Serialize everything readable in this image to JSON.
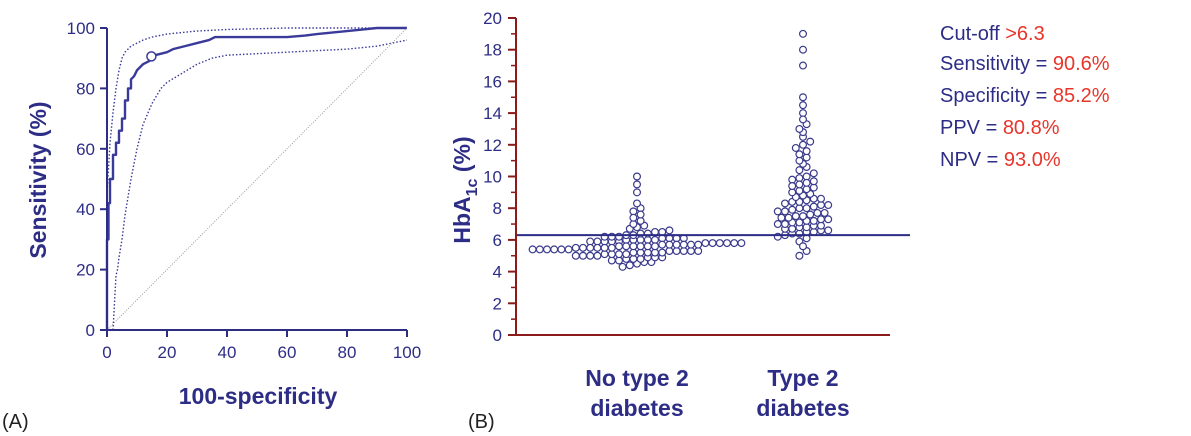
{
  "colors": {
    "axis": "#2d2d86",
    "accent": "#e8352a",
    "marker": "#3a3a8c",
    "diagonal": "#999999"
  },
  "chart_data": [
    {
      "panel_label": "(A)",
      "type": "line",
      "xlabel": "100-specificity",
      "ylabel": "Sensitivity (%)",
      "xlim": [
        0,
        100
      ],
      "ylim": [
        0,
        100
      ],
      "xticks": [
        "0",
        "20",
        "40",
        "60",
        "80",
        "100"
      ],
      "yticks": [
        "0",
        "20",
        "40",
        "60",
        "80",
        "100"
      ],
      "series": [
        {
          "name": "ROC",
          "style": "solid",
          "x": [
            0,
            0,
            0.5,
            0.5,
            1,
            1,
            2,
            2,
            3,
            3,
            4,
            4,
            5,
            5,
            6,
            6,
            7,
            7,
            8,
            8,
            9,
            10,
            12,
            14,
            14.8,
            16,
            18,
            20,
            22,
            26,
            30,
            34,
            36,
            60,
            66,
            70,
            75,
            80,
            85,
            90,
            95,
            100
          ],
          "y": [
            0,
            30,
            30,
            42,
            42,
            50,
            50,
            58,
            58,
            62,
            62,
            66,
            66,
            70,
            70,
            76,
            76,
            80,
            80,
            83,
            84,
            86,
            88,
            89,
            90.6,
            91,
            91.5,
            92,
            93,
            94,
            95,
            96,
            97,
            97,
            97.5,
            98,
            98.5,
            99,
            99.5,
            100,
            100,
            100
          ]
        },
        {
          "name": "Upper 95% CI",
          "style": "dotted",
          "x": [
            0,
            1,
            2,
            3,
            4,
            5,
            6,
            8,
            10,
            12,
            15,
            20,
            30,
            40,
            60,
            80,
            90,
            95,
            100
          ],
          "y": [
            45,
            62,
            72,
            80,
            86,
            90,
            92,
            94,
            95,
            96,
            97,
            98,
            99,
            99.5,
            100,
            100,
            100,
            100,
            100
          ]
        },
        {
          "name": "Lower 95% CI",
          "style": "dotted",
          "x": [
            2,
            3,
            3.5,
            4,
            5,
            6,
            8,
            10,
            12,
            15,
            18,
            20,
            25,
            30,
            35,
            40,
            60,
            80,
            90,
            95,
            100
          ],
          "y": [
            0,
            18,
            20,
            24,
            30,
            38,
            50,
            60,
            68,
            75,
            80,
            82,
            85,
            88,
            90,
            91,
            92,
            93,
            94,
            95,
            96
          ]
        },
        {
          "name": "Reference line",
          "style": "diagonal",
          "x": [
            0,
            100
          ],
          "y": [
            0,
            100
          ]
        }
      ],
      "highlight_point": {
        "x": 14.8,
        "y": 90.6
      }
    },
    {
      "panel_label": "(B)",
      "type": "scatter",
      "ylabel_main": "HbA",
      "ylabel_sub": "1c",
      "ylabel_suffix": " (%)",
      "ylim": [
        0,
        20
      ],
      "yticks": [
        "0",
        "2",
        "4",
        "6",
        "8",
        "10",
        "12",
        "14",
        "16",
        "18",
        "20"
      ],
      "categories": [
        "No type 2 diabetes",
        "Type 2 diabetes"
      ],
      "category_labels": [
        [
          "No type 2",
          "diabetes"
        ],
        [
          "Type 2",
          "diabetes"
        ]
      ],
      "cutoff": 6.3,
      "series": [
        {
          "name": "No type 2 diabetes",
          "values": [
            4.3,
            4.4,
            4.5,
            4.6,
            4.6,
            4.7,
            4.7,
            4.8,
            4.8,
            4.8,
            4.9,
            4.9,
            4.9,
            5.0,
            5.0,
            5.0,
            5.0,
            5.1,
            5.1,
            5.1,
            5.1,
            5.2,
            5.2,
            5.2,
            5.2,
            5.2,
            5.3,
            5.3,
            5.3,
            5.3,
            5.3,
            5.4,
            5.4,
            5.4,
            5.4,
            5.4,
            5.4,
            5.5,
            5.5,
            5.5,
            5.5,
            5.5,
            5.5,
            5.6,
            5.6,
            5.6,
            5.6,
            5.6,
            5.6,
            5.7,
            5.7,
            5.7,
            5.7,
            5.7,
            5.7,
            5.8,
            5.8,
            5.8,
            5.8,
            5.8,
            5.8,
            5.9,
            5.9,
            5.9,
            5.9,
            5.9,
            6.0,
            6.0,
            6.0,
            6.0,
            6.0,
            6.1,
            6.1,
            6.1,
            6.1,
            6.2,
            6.2,
            6.2,
            6.3,
            6.3,
            6.4,
            6.4,
            6.5,
            6.5,
            6.6,
            6.7,
            6.8,
            6.9,
            7.0,
            7.2,
            7.4,
            7.6,
            7.8,
            8.0,
            8.3,
            9.0,
            9.5,
            10.0
          ]
        },
        {
          "name": "Type 2 diabetes",
          "values": [
            5.0,
            5.3,
            5.6,
            5.9,
            6.1,
            6.2,
            6.3,
            6.4,
            6.4,
            6.5,
            6.5,
            6.6,
            6.6,
            6.7,
            6.7,
            6.8,
            6.8,
            6.9,
            6.9,
            7.0,
            7.0,
            7.1,
            7.1,
            7.2,
            7.2,
            7.3,
            7.3,
            7.4,
            7.4,
            7.5,
            7.5,
            7.6,
            7.7,
            7.7,
            7.8,
            7.8,
            7.9,
            8.0,
            8.0,
            8.1,
            8.2,
            8.2,
            8.3,
            8.4,
            8.4,
            8.5,
            8.6,
            8.6,
            8.7,
            8.8,
            8.9,
            9.0,
            9.1,
            9.2,
            9.3,
            9.4,
            9.5,
            9.6,
            9.7,
            9.8,
            9.9,
            10.0,
            10.2,
            10.4,
            10.6,
            10.8,
            11.0,
            11.2,
            11.4,
            11.6,
            11.8,
            12.0,
            12.2,
            12.5,
            12.8,
            13.0,
            13.3,
            13.6,
            14.0,
            14.5,
            15.0,
            17.0,
            18.0,
            19.0
          ]
        }
      ]
    }
  ],
  "stats": [
    {
      "label": "Cut-off ",
      "value": ">6.3"
    },
    {
      "label": "Sensitivity = ",
      "value": "90.6%"
    },
    {
      "label": "Specificity = ",
      "value": " 85.2%"
    },
    {
      "label": "PPV = ",
      "value": "80.8%"
    },
    {
      "label": "NPV = ",
      "value": "93.0%"
    }
  ]
}
